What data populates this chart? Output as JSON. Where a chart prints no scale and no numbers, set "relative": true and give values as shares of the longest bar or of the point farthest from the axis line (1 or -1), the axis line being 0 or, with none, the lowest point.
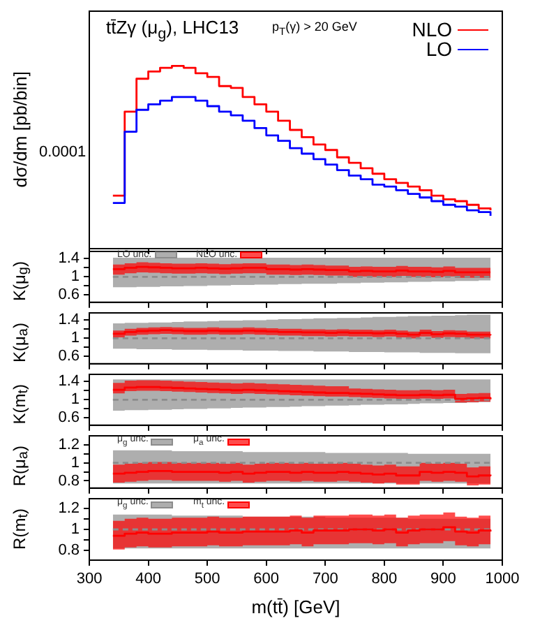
{
  "chart_data": [
    {
      "type": "step",
      "title": "tt̄Zγ (μ$_{g}$), LHC13",
      "subtitle": "p$_{T}$(γ) > 20 GeV",
      "ylabel": "dσ/dm [pb/bin]",
      "relative": true,
      "legend": "top right",
      "tick_labels": false,
      "annotations": [
        "0.0001"
      ],
      "x": [
        340,
        360,
        380,
        400,
        420,
        440,
        460,
        480,
        500,
        520,
        540,
        560,
        580,
        600,
        620,
        640,
        660,
        680,
        700,
        720,
        740,
        760,
        780,
        800,
        820,
        840,
        860,
        880,
        900,
        920,
        940,
        960,
        980
      ],
      "xlim": [
        300,
        1000
      ],
      "xticks": [
        300,
        400,
        500,
        600,
        700,
        800,
        900,
        1000
      ],
      "series": [
        {
          "name": "NLO",
          "color": "#ff0000",
          "values": [
            0.29,
            0.75,
            0.93,
            0.97,
            0.99,
            1,
            0.99,
            0.96,
            0.94,
            0.89,
            0.88,
            0.83,
            0.79,
            0.75,
            0.7,
            0.65,
            0.61,
            0.57,
            0.54,
            0.5,
            0.47,
            0.44,
            0.41,
            0.38,
            0.36,
            0.34,
            0.32,
            0.29,
            0.27,
            0.26,
            0.24,
            0.22,
            0.21
          ]
        },
        {
          "name": "LO",
          "color": "#0000ff",
          "values": [
            0.25,
            0.64,
            0.76,
            0.79,
            0.81,
            0.83,
            0.83,
            0.81,
            0.78,
            0.75,
            0.73,
            0.7,
            0.66,
            0.62,
            0.59,
            0.55,
            0.52,
            0.49,
            0.46,
            0.43,
            0.4,
            0.38,
            0.35,
            0.34,
            0.32,
            0.3,
            0.28,
            0.26,
            0.24,
            0.23,
            0.21,
            0.2,
            0.18
          ]
        }
      ]
    },
    {
      "type": "step",
      "ylabel": "K(μ$_{g}$)",
      "legend": "top left",
      "tick_labels": "y",
      "x": [
        340,
        360,
        380,
        400,
        420,
        440,
        460,
        480,
        500,
        520,
        540,
        560,
        580,
        600,
        620,
        640,
        660,
        680,
        700,
        720,
        740,
        760,
        780,
        800,
        820,
        840,
        860,
        880,
        900,
        920,
        940,
        960,
        980
      ],
      "xlim": [
        300,
        1000
      ],
      "xticks": [
        300,
        400,
        500,
        600,
        700,
        800,
        900,
        1000
      ],
      "ylim": [
        0.44,
        1.56
      ],
      "yticks": [
        0.6,
        {
          "value": 0.8,
          "label": null
        },
        1,
        {
          "value": 1.2,
          "label": null
        },
        1.4
      ],
      "series": [
        {
          "name": "LO unc.",
          "color": "#8c8c8c",
          "line_style": "dashed",
          "values": [
            1,
            1,
            1,
            1,
            1,
            1,
            1,
            1,
            1,
            1,
            1,
            1,
            1,
            1,
            1,
            1,
            1,
            1,
            1,
            1,
            1,
            1,
            1,
            1,
            1,
            1,
            1,
            1,
            1,
            1,
            1,
            1,
            1
          ],
          "lower": [
            0.77,
            0.77,
            0.78,
            0.78,
            0.79,
            0.79,
            0.8,
            0.8,
            0.81,
            0.81,
            0.82,
            0.82,
            0.83,
            0.83,
            0.84,
            0.84,
            0.85,
            0.85,
            0.85,
            0.86,
            0.86,
            0.87,
            0.87,
            0.88,
            0.88,
            0.89,
            0.89,
            0.9,
            0.9,
            0.91,
            0.91,
            0.92,
            0.92
          ],
          "upper": [
            1.42,
            1.42,
            1.42,
            1.42,
            1.42,
            1.42,
            1.42,
            1.42,
            1.42,
            1.42,
            1.42,
            1.42,
            1.42,
            1.42,
            1.42,
            1.42,
            1.42,
            1.42,
            1.42,
            1.42,
            1.42,
            1.42,
            1.42,
            1.42,
            1.42,
            1.42,
            1.42,
            1.42,
            1.42,
            1.42,
            1.42,
            1.42,
            1.42
          ]
        },
        {
          "name": "NLO unc.",
          "color": "#ff0000",
          "values": [
            1.17,
            1.2,
            1.22,
            1.21,
            1.2,
            1.19,
            1.19,
            1.2,
            1.19,
            1.18,
            1.19,
            1.2,
            1.2,
            1.17,
            1.17,
            1.16,
            1.17,
            1.16,
            1.15,
            1.15,
            1.12,
            1.13,
            1.12,
            1.12,
            1.14,
            1.12,
            1.12,
            1.11,
            1.13,
            1.1,
            1.1,
            1.1,
            1.1
          ],
          "lower": [
            1.05,
            1.08,
            1.1,
            1.09,
            1.08,
            1.07,
            1.07,
            1.08,
            1.07,
            1.06,
            1.07,
            1.08,
            1.08,
            1.05,
            1.05,
            1.04,
            1.05,
            1.04,
            1.03,
            1.03,
            1.0,
            1.01,
            1.0,
            1.0,
            1.02,
            1.0,
            1.0,
            0.99,
            1.01,
            0.98,
            0.98,
            0.98,
            0.98
          ],
          "upper": [
            1.27,
            1.3,
            1.32,
            1.31,
            1.3,
            1.29,
            1.29,
            1.3,
            1.29,
            1.28,
            1.29,
            1.3,
            1.3,
            1.27,
            1.27,
            1.26,
            1.27,
            1.26,
            1.25,
            1.25,
            1.22,
            1.23,
            1.22,
            1.22,
            1.24,
            1.22,
            1.22,
            1.21,
            1.23,
            1.2,
            1.2,
            1.2,
            1.2
          ]
        }
      ]
    },
    {
      "type": "step",
      "ylabel": "K(μ$_{a}$)",
      "tick_labels": "y",
      "x": [
        340,
        360,
        380,
        400,
        420,
        440,
        460,
        480,
        500,
        520,
        540,
        560,
        580,
        600,
        620,
        640,
        660,
        680,
        700,
        720,
        740,
        760,
        780,
        800,
        820,
        840,
        860,
        880,
        900,
        920,
        940,
        960,
        980
      ],
      "xlim": [
        300,
        1000
      ],
      "xticks": [
        300,
        400,
        500,
        600,
        700,
        800,
        900,
        1000
      ],
      "ylim": [
        0.44,
        1.56
      ],
      "yticks": [
        0.6,
        {
          "value": 0.8,
          "label": null
        },
        1,
        {
          "value": 1.2,
          "label": null
        },
        1.4
      ],
      "series": [
        {
          "color": "#8c8c8c",
          "line_style": "dashed",
          "values": [
            1,
            1,
            1,
            1,
            1,
            1,
            1,
            1,
            1,
            1,
            1,
            1,
            1,
            1,
            1,
            1,
            1,
            1,
            1,
            1,
            1,
            1,
            1,
            1,
            1,
            1,
            1,
            1,
            1,
            1,
            1,
            1,
            1
          ],
          "lower": [
            0.77,
            0.77,
            0.76,
            0.76,
            0.76,
            0.75,
            0.75,
            0.75,
            0.74,
            0.74,
            0.74,
            0.73,
            0.73,
            0.73,
            0.72,
            0.72,
            0.72,
            0.71,
            0.71,
            0.71,
            0.7,
            0.7,
            0.7,
            0.69,
            0.69,
            0.69,
            0.68,
            0.68,
            0.68,
            0.67,
            0.67,
            0.67,
            0.67
          ],
          "upper": [
            1.33,
            1.34,
            1.34,
            1.35,
            1.35,
            1.36,
            1.37,
            1.37,
            1.38,
            1.39,
            1.39,
            1.4,
            1.4,
            1.41,
            1.42,
            1.42,
            1.43,
            1.44,
            1.44,
            1.45,
            1.45,
            1.46,
            1.47,
            1.47,
            1.48,
            1.49,
            1.49,
            1.5,
            1.5,
            1.51,
            1.52,
            1.52,
            1.53
          ]
        },
        {
          "color": "#ff0000",
          "values": [
            1.1,
            1.14,
            1.16,
            1.17,
            1.18,
            1.17,
            1.16,
            1.16,
            1.17,
            1.16,
            1.16,
            1.17,
            1.16,
            1.15,
            1.14,
            1.14,
            1.13,
            1.13,
            1.12,
            1.13,
            1.12,
            1.12,
            1.11,
            1.12,
            1.1,
            1.08,
            1.12,
            1.09,
            1.11,
            1.1,
            1.08,
            1.08,
            1.09
          ],
          "lower": [
            1.02,
            1.06,
            1.08,
            1.09,
            1.1,
            1.09,
            1.08,
            1.08,
            1.09,
            1.08,
            1.08,
            1.09,
            1.08,
            1.07,
            1.06,
            1.06,
            1.05,
            1.05,
            1.04,
            1.05,
            1.04,
            1.04,
            1.03,
            1.04,
            1.02,
            1.0,
            1.04,
            1.01,
            1.03,
            1.02,
            1.0,
            1.0,
            1.01
          ],
          "upper": [
            1.17,
            1.21,
            1.23,
            1.24,
            1.25,
            1.24,
            1.23,
            1.23,
            1.24,
            1.23,
            1.23,
            1.24,
            1.23,
            1.22,
            1.21,
            1.21,
            1.2,
            1.2,
            1.19,
            1.2,
            1.19,
            1.19,
            1.18,
            1.19,
            1.17,
            1.15,
            1.19,
            1.16,
            1.18,
            1.17,
            1.15,
            1.15,
            1.16
          ]
        }
      ]
    },
    {
      "type": "step",
      "ylabel": "K(m$_{t}$)",
      "tick_labels": "y",
      "x": [
        340,
        360,
        380,
        400,
        420,
        440,
        460,
        480,
        500,
        520,
        540,
        560,
        580,
        600,
        620,
        640,
        660,
        680,
        700,
        720,
        740,
        760,
        780,
        800,
        820,
        840,
        860,
        880,
        900,
        920,
        940,
        960,
        980
      ],
      "xlim": [
        300,
        1000
      ],
      "xticks": [
        300,
        400,
        500,
        600,
        700,
        800,
        900,
        1000
      ],
      "ylim": [
        0.44,
        1.56
      ],
      "yticks": [
        0.6,
        {
          "value": 0.8,
          "label": null
        },
        1,
        {
          "value": 1.2,
          "label": null
        },
        1.4
      ],
      "series": [
        {
          "color": "#8c8c8c",
          "line_style": "dashed",
          "values": [
            1,
            1,
            1,
            1,
            1,
            1,
            1,
            1,
            1,
            1,
            1,
            1,
            1,
            1,
            1,
            1,
            1,
            1,
            1,
            1,
            1,
            1,
            1,
            1,
            1,
            1,
            1,
            1,
            1,
            1,
            1,
            1,
            1
          ],
          "lower": [
            0.76,
            0.77,
            0.77,
            0.78,
            0.78,
            0.79,
            0.8,
            0.8,
            0.81,
            0.81,
            0.82,
            0.83,
            0.83,
            0.84,
            0.84,
            0.85,
            0.86,
            0.86,
            0.87,
            0.87,
            0.88,
            0.89,
            0.89,
            0.9,
            0.9,
            0.91,
            0.92,
            0.92,
            0.93,
            0.93,
            0.94,
            0.95,
            0.95
          ],
          "upper": [
            1.45,
            1.45,
            1.45,
            1.45,
            1.45,
            1.45,
            1.45,
            1.45,
            1.45,
            1.45,
            1.45,
            1.45,
            1.45,
            1.45,
            1.45,
            1.45,
            1.45,
            1.45,
            1.45,
            1.45,
            1.45,
            1.45,
            1.45,
            1.45,
            1.45,
            1.45,
            1.45,
            1.45,
            1.45,
            1.45,
            1.45,
            1.45,
            1.45
          ]
        },
        {
          "color": "#ff0000",
          "values": [
            1.22,
            1.27,
            1.28,
            1.28,
            1.27,
            1.26,
            1.25,
            1.24,
            1.23,
            1.22,
            1.21,
            1.22,
            1.21,
            1.2,
            1.19,
            1.18,
            1.17,
            1.16,
            1.15,
            1.15,
            1.14,
            1.13,
            1.12,
            1.11,
            1.1,
            1.1,
            1.11,
            1.1,
            1.11,
            1.02,
            1.03,
            1.04,
            1.01
          ],
          "lower": [
            1.14,
            1.19,
            1.2,
            1.2,
            1.19,
            1.18,
            1.17,
            1.16,
            1.15,
            1.14,
            1.13,
            1.14,
            1.13,
            1.12,
            1.11,
            1.1,
            1.09,
            1.08,
            1.07,
            1.07,
            1.06,
            1.05,
            1.04,
            1.03,
            1.02,
            1.02,
            1.03,
            1.02,
            1.03,
            0.94,
            0.95,
            0.96,
            0.93
          ],
          "upper": [
            1.37,
            1.42,
            1.43,
            1.43,
            1.42,
            1.41,
            1.4,
            1.39,
            1.38,
            1.37,
            1.36,
            1.37,
            1.36,
            1.35,
            1.34,
            1.33,
            1.32,
            1.31,
            1.3,
            1.3,
            1.25,
            1.24,
            1.23,
            1.22,
            1.21,
            1.21,
            1.22,
            1.21,
            1.22,
            1.13,
            1.14,
            1.15,
            1.12
          ]
        }
      ]
    },
    {
      "type": "step",
      "ylabel": "R(μ$_{a}$)",
      "legend": "top left",
      "tick_labels": "y",
      "x": [
        340,
        360,
        380,
        400,
        420,
        440,
        460,
        480,
        500,
        520,
        540,
        560,
        580,
        600,
        620,
        640,
        660,
        680,
        700,
        720,
        740,
        760,
        780,
        800,
        820,
        840,
        860,
        880,
        900,
        920,
        940,
        960,
        980
      ],
      "xlim": [
        300,
        1000
      ],
      "xticks": [
        300,
        400,
        500,
        600,
        700,
        800,
        900,
        1000
      ],
      "ylim": [
        0.72,
        1.3
      ],
      "yticks": [
        0.8,
        {
          "value": 0.9,
          "label": null
        },
        1,
        {
          "value": 1.1,
          "label": null
        },
        1.2
      ],
      "series": [
        {
          "name": "μ$_{g}$ unc.",
          "color": "#8c8c8c",
          "line_style": "dashed",
          "values": [
            1,
            1,
            1,
            1,
            1,
            1,
            1,
            1,
            1,
            1,
            1,
            1,
            1,
            1,
            1,
            1,
            1,
            1,
            1,
            1,
            1,
            1,
            1,
            1,
            1,
            1,
            1,
            1,
            1,
            1,
            1,
            1,
            1
          ],
          "lower": [
            0.77,
            0.77,
            0.77,
            0.77,
            0.77,
            0.77,
            0.77,
            0.77,
            0.77,
            0.77,
            0.77,
            0.77,
            0.77,
            0.77,
            0.77,
            0.77,
            0.77,
            0.77,
            0.77,
            0.77,
            0.77,
            0.77,
            0.77,
            0.77,
            0.77,
            0.77,
            0.77,
            0.77,
            0.77,
            0.77,
            0.77,
            0.77,
            0.77
          ],
          "upper": [
            1.14,
            1.14,
            1.14,
            1.14,
            1.14,
            1.13,
            1.13,
            1.13,
            1.13,
            1.13,
            1.13,
            1.12,
            1.12,
            1.12,
            1.12,
            1.12,
            1.12,
            1.12,
            1.11,
            1.11,
            1.11,
            1.11,
            1.11,
            1.11,
            1.11,
            1.1,
            1.1,
            1.1,
            1.1,
            1.1,
            1.1,
            1.1,
            1.1
          ]
        },
        {
          "name": "μ$_{a}$ unc.",
          "color": "#ff0000",
          "values": [
            0.88,
            0.89,
            0.9,
            0.91,
            0.91,
            0.9,
            0.9,
            0.9,
            0.9,
            0.89,
            0.9,
            0.88,
            0.89,
            0.9,
            0.9,
            0.89,
            0.9,
            0.89,
            0.89,
            0.9,
            0.89,
            0.88,
            0.87,
            0.88,
            0.86,
            0.86,
            0.9,
            0.89,
            0.9,
            0.89,
            0.85,
            0.86,
            0.87
          ],
          "lower": [
            0.78,
            0.79,
            0.8,
            0.81,
            0.81,
            0.8,
            0.8,
            0.8,
            0.8,
            0.79,
            0.8,
            0.78,
            0.79,
            0.8,
            0.8,
            0.79,
            0.8,
            0.79,
            0.79,
            0.8,
            0.79,
            0.78,
            0.77,
            0.78,
            0.76,
            0.76,
            0.8,
            0.79,
            0.8,
            0.79,
            0.75,
            0.76,
            0.77
          ],
          "upper": [
            0.98,
            0.99,
            1.0,
            1.01,
            1.01,
            1.0,
            1.0,
            1.0,
            1.0,
            0.99,
            1.0,
            0.98,
            0.99,
            1.0,
            1.0,
            0.99,
            1.0,
            0.99,
            0.99,
            1.0,
            0.99,
            0.98,
            0.97,
            0.98,
            0.96,
            0.96,
            1.0,
            0.99,
            1.0,
            0.99,
            0.95,
            0.96,
            0.97
          ]
        }
      ]
    },
    {
      "type": "step",
      "ylabel": "R(m$_{t}$)",
      "xlabel": "m(tt̄) [GeV]",
      "legend": "top left",
      "x": [
        340,
        360,
        380,
        400,
        420,
        440,
        460,
        480,
        500,
        520,
        540,
        560,
        580,
        600,
        620,
        640,
        660,
        680,
        700,
        720,
        740,
        760,
        780,
        800,
        820,
        840,
        860,
        880,
        900,
        920,
        940,
        960,
        980
      ],
      "xlim": [
        300,
        1000
      ],
      "xticks": [
        300,
        400,
        500,
        600,
        700,
        800,
        900,
        1000
      ],
      "ylim": [
        0.71,
        1.29
      ],
      "yticks": [
        0.8,
        {
          "value": 0.9,
          "label": null
        },
        1,
        {
          "value": 1.1,
          "label": null
        },
        1.2
      ],
      "series": [
        {
          "name": "μ$_{g}$ unc.",
          "color": "#8c8c8c",
          "line_style": "dashed",
          "values": [
            1,
            1,
            1,
            1,
            1,
            1,
            1,
            1,
            1,
            1,
            1,
            1,
            1,
            1,
            1,
            1,
            1,
            1,
            1,
            1,
            1,
            1,
            1,
            1,
            1,
            1,
            1,
            1,
            1,
            1,
            1,
            1,
            1
          ],
          "lower": [
            0.82,
            0.82,
            0.82,
            0.82,
            0.82,
            0.82,
            0.82,
            0.82,
            0.82,
            0.82,
            0.82,
            0.82,
            0.82,
            0.82,
            0.82,
            0.82,
            0.82,
            0.82,
            0.82,
            0.82,
            0.82,
            0.82,
            0.82,
            0.82,
            0.82,
            0.82,
            0.82,
            0.82,
            0.82,
            0.82,
            0.82,
            0.82,
            0.82
          ],
          "upper": [
            1.14,
            1.14,
            1.14,
            1.14,
            1.14,
            1.13,
            1.13,
            1.13,
            1.13,
            1.13,
            1.13,
            1.12,
            1.12,
            1.12,
            1.12,
            1.12,
            1.12,
            1.12,
            1.11,
            1.11,
            1.11,
            1.11,
            1.11,
            1.11,
            1.11,
            1.1,
            1.1,
            1.1,
            1.1,
            1.1,
            1.1,
            1.1,
            1.1
          ]
        },
        {
          "name": "m$_{t}$ unc.",
          "color": "#ff0000",
          "values": [
            0.94,
            0.96,
            0.97,
            0.96,
            0.96,
            0.97,
            0.97,
            0.97,
            0.98,
            0.97,
            0.97,
            0.98,
            0.98,
            0.98,
            0.98,
            0.99,
            0.97,
            0.99,
            0.99,
            0.99,
            1.0,
            1.0,
            0.99,
            1.0,
            0.97,
            0.99,
            1.0,
            1.0,
            1.02,
            0.98,
            0.97,
            0.99,
            0.98
          ],
          "lower": [
            0.81,
            0.83,
            0.84,
            0.83,
            0.83,
            0.84,
            0.84,
            0.84,
            0.85,
            0.84,
            0.84,
            0.85,
            0.85,
            0.85,
            0.85,
            0.86,
            0.84,
            0.86,
            0.86,
            0.86,
            0.87,
            0.87,
            0.86,
            0.87,
            0.84,
            0.86,
            0.87,
            0.87,
            0.89,
            0.85,
            0.84,
            0.86,
            0.85
          ],
          "upper": [
            1.08,
            1.1,
            1.11,
            1.1,
            1.1,
            1.11,
            1.11,
            1.11,
            1.12,
            1.11,
            1.11,
            1.12,
            1.12,
            1.12,
            1.12,
            1.13,
            1.11,
            1.13,
            1.13,
            1.13,
            1.14,
            1.14,
            1.13,
            1.14,
            1.11,
            1.13,
            1.14,
            1.14,
            1.16,
            1.12,
            1.11,
            1.13,
            1.12
          ]
        }
      ]
    }
  ]
}
